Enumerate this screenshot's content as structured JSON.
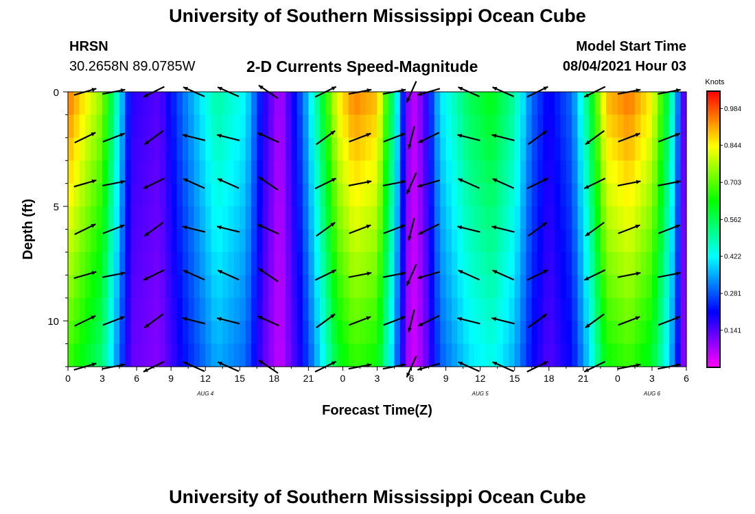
{
  "page_title_top": "University of Southern Mississippi Ocean Cube",
  "page_title_bottom": "University of Southern Mississippi Ocean Cube",
  "station": {
    "code": "HRSN",
    "coords": "30.2658N  89.0785W"
  },
  "model": {
    "label": "Model Start Time",
    "value": "08/04/2021 Hour 03"
  },
  "chart_data": {
    "type": "heatmap",
    "title": "2-D Currents Speed-Magnitude",
    "xlabel": "Forecast Time(Z)",
    "ylabel": "Depth (ft)",
    "x_range_hours": [
      0,
      54
    ],
    "y_range_ft": [
      0,
      12
    ],
    "x_ticks": [
      "0",
      "3",
      "6",
      "9",
      "12",
      "15",
      "18",
      "21",
      "0",
      "3",
      "6",
      "9",
      "12",
      "15",
      "18",
      "21",
      "0",
      "3",
      "6"
    ],
    "y_ticks": [
      "0",
      "5",
      "10"
    ],
    "date_labels": [
      {
        "label": "AUG 4",
        "hour": 12
      },
      {
        "label": "AUG 5",
        "hour": 36
      },
      {
        "label": "AUG 6",
        "hour": 51
      }
    ],
    "colorbar": {
      "unit": "Knots",
      "min": 0.0,
      "max": 1.05,
      "ticks": [
        "0.984",
        "0.844",
        "0.703",
        "0.562",
        "0.422",
        "0.281",
        "0.141"
      ]
    },
    "speed_profile_knots": [
      {
        "hour": 0,
        "value": 0.96
      },
      {
        "hour": 3,
        "value": 0.75
      },
      {
        "hour": 4.5,
        "value": 0.42
      },
      {
        "hour": 5.5,
        "value": 0.18
      },
      {
        "hour": 8,
        "value": 0.14
      },
      {
        "hour": 10,
        "value": 0.3
      },
      {
        "hour": 13,
        "value": 0.5
      },
      {
        "hour": 15.5,
        "value": 0.42
      },
      {
        "hour": 17,
        "value": 0.2
      },
      {
        "hour": 18.5,
        "value": 0.06
      },
      {
        "hour": 20.5,
        "value": 0.3
      },
      {
        "hour": 22,
        "value": 0.55
      },
      {
        "hour": 23.5,
        "value": 0.84
      },
      {
        "hour": 25,
        "value": 0.95
      },
      {
        "hour": 27,
        "value": 0.9
      },
      {
        "hour": 28.5,
        "value": 0.5
      },
      {
        "hour": 29.5,
        "value": 0.15
      },
      {
        "hour": 30,
        "value": 0.04
      },
      {
        "hour": 31,
        "value": 0.12
      },
      {
        "hour": 32.5,
        "value": 0.4
      },
      {
        "hour": 35,
        "value": 0.56
      },
      {
        "hour": 37,
        "value": 0.62
      },
      {
        "hour": 39,
        "value": 0.5
      },
      {
        "hour": 40.5,
        "value": 0.3
      },
      {
        "hour": 42,
        "value": 0.2
      },
      {
        "hour": 44,
        "value": 0.3
      },
      {
        "hour": 45.5,
        "value": 0.55
      },
      {
        "hour": 47,
        "value": 0.9
      },
      {
        "hour": 49,
        "value": 0.96
      },
      {
        "hour": 51,
        "value": 0.85
      },
      {
        "hour": 52.5,
        "value": 0.55
      },
      {
        "hour": 53.3,
        "value": 0.3
      },
      {
        "hour": 54,
        "value": 0.05
      }
    ],
    "depth_attenuation": 0.3,
    "arrow_columns_hours": [
      1.5,
      4,
      7.5,
      11,
      14,
      17.5,
      22.5,
      25.5,
      28.5,
      30,
      31.5,
      35,
      38,
      41,
      46,
      49,
      52.5
    ],
    "arrow_rows_ft": [
      0,
      2,
      4,
      6,
      8,
      10,
      12
    ],
    "arrow_dir_deg": [
      20,
      15,
      -150,
      160,
      160,
      150,
      30,
      15,
      15,
      -110,
      -160,
      160,
      160,
      30,
      -150,
      15,
      15
    ]
  }
}
